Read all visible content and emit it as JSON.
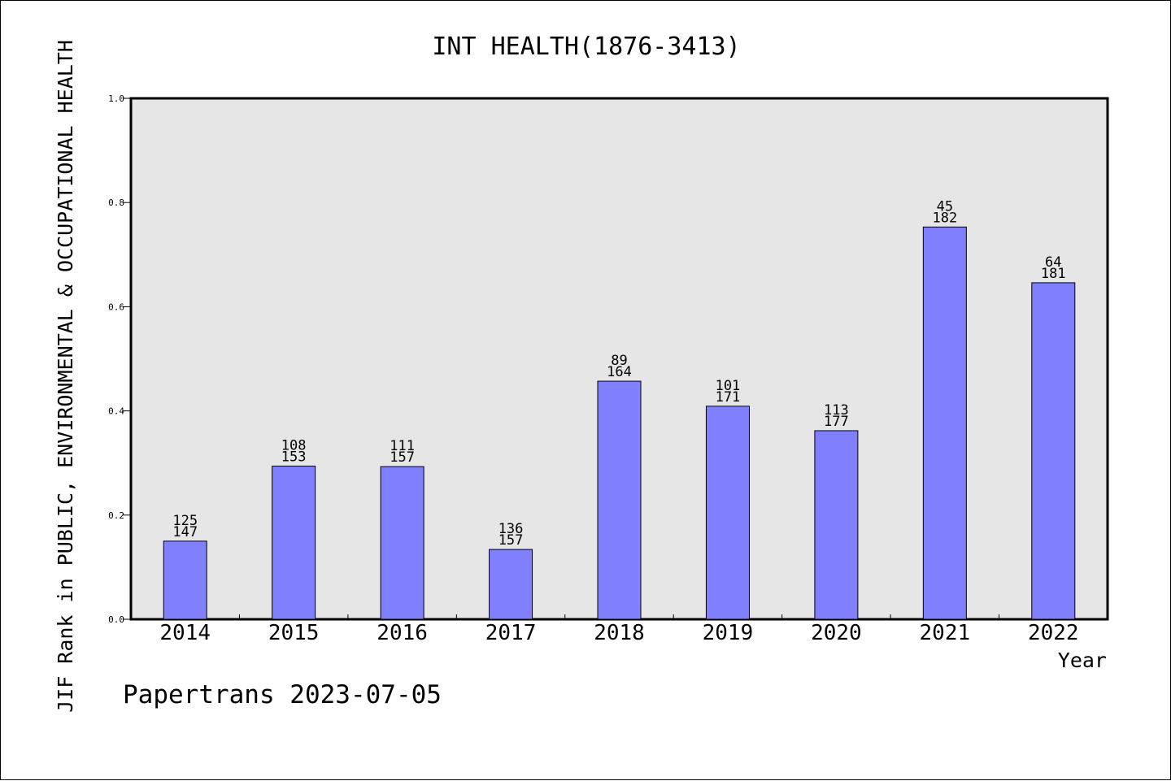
{
  "chart_data": {
    "type": "bar",
    "title": "INT HEALTH(1876-3413)",
    "xlabel": "Year",
    "ylabel": "JIF Rank in PUBLIC, ENVIRONMENTAL & OCCUPATIONAL HEALTH",
    "ylim": [
      0,
      1.0
    ],
    "yticks": [
      "0.0",
      "0.2",
      "0.4",
      "0.6",
      "0.8",
      "1.0"
    ],
    "categories": [
      "2014",
      "2015",
      "2016",
      "2017",
      "2018",
      "2019",
      "2020",
      "2021",
      "2022"
    ],
    "values": [
      0.15,
      0.294,
      0.293,
      0.134,
      0.457,
      0.409,
      0.362,
      0.753,
      0.646
    ],
    "rank": [
      "125",
      "108",
      "111",
      "136",
      "89",
      "101",
      "113",
      "45",
      "64"
    ],
    "total": [
      "147",
      "153",
      "157",
      "157",
      "164",
      "171",
      "177",
      "182",
      "181"
    ],
    "bar_color": "#8080ff",
    "plot_background": "#e6e6e6",
    "grid": false
  },
  "footer": "Papertrans 2023-07-05"
}
